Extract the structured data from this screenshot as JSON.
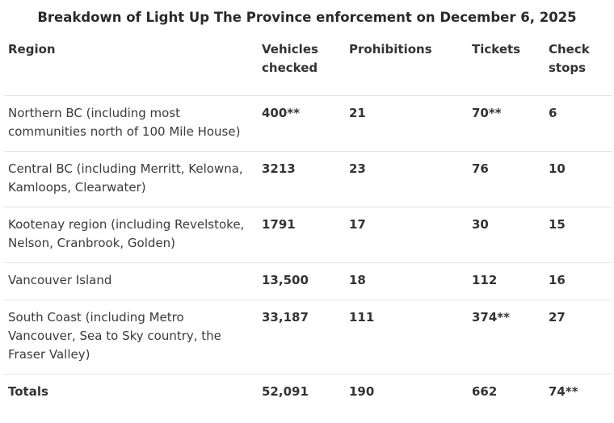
{
  "title": "Breakdown of Light Up The Province enforcement on December 6, 2025",
  "columns": [
    "Region",
    "Vehicles checked",
    "Prohibitions",
    "Tickets",
    "Check stops"
  ],
  "rows": [
    {
      "region": "Northern BC (including most communities north of 100 Mile House)",
      "vehicles": "400**",
      "prohibitions": "21",
      "tickets": "70**",
      "check_stops": "6"
    },
    {
      "region": "Central BC (including Merritt, Kelowna, Kamloops, Clearwater)",
      "vehicles": "3213",
      "prohibitions": "23",
      "tickets": "76",
      "check_stops": "10"
    },
    {
      "region": "Kootenay region (including Revelstoke, Nelson, Cranbrook, Golden)",
      "vehicles": "1791",
      "prohibitions": "17",
      "tickets": "30",
      "check_stops": "15"
    },
    {
      "region": "Vancouver Island",
      "vehicles": "13,500",
      "prohibitions": "18",
      "tickets": "112",
      "check_stops": "16"
    },
    {
      "region": "South Coast (including Metro Vancouver, Sea to Sky country, the Fraser Valley)",
      "vehicles": "33,187",
      "prohibitions": "111",
      "tickets": "374**",
      "check_stops": "27"
    }
  ],
  "totals": {
    "label": "Totals",
    "vehicles": "52,091",
    "prohibitions": "190",
    "tickets": "662",
    "check_stops": "74**"
  }
}
